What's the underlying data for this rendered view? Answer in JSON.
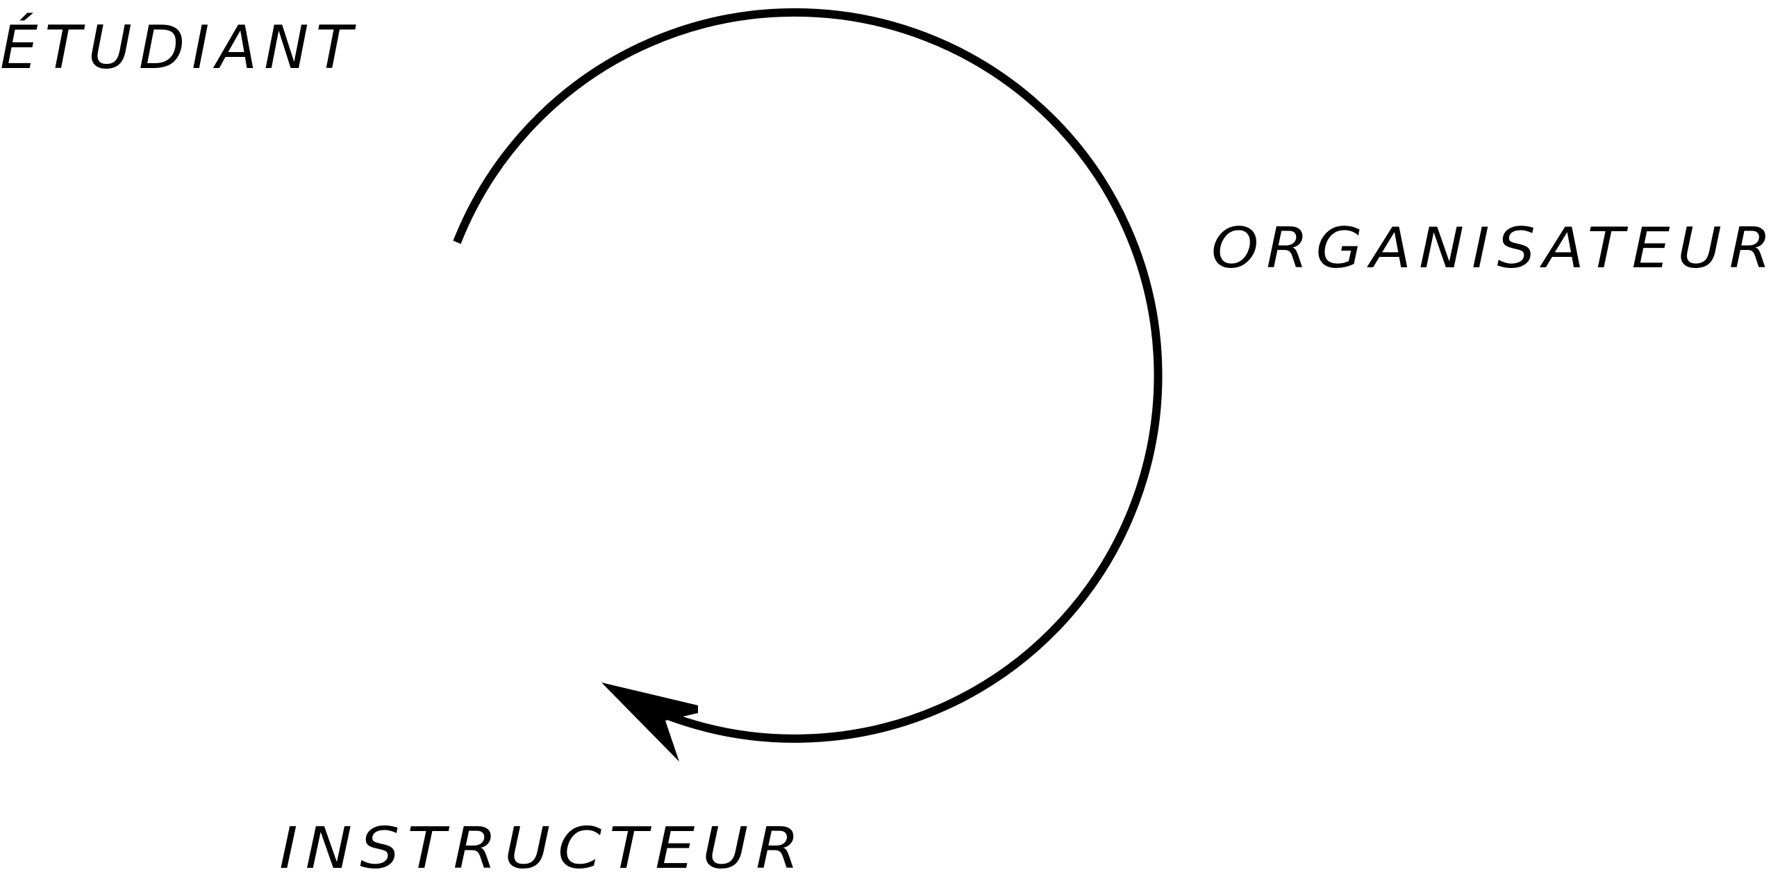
{
  "diagram": {
    "labels": {
      "etudiant": "ÉTUDIANT",
      "organisateur": "ORGANISATEUR",
      "instructeur": "INSTRUCTEUR"
    },
    "colors": {
      "ink": "#000000",
      "background": "#ffffff"
    },
    "cycle": {
      "direction": "clockwise",
      "arrowhead": "end"
    }
  }
}
